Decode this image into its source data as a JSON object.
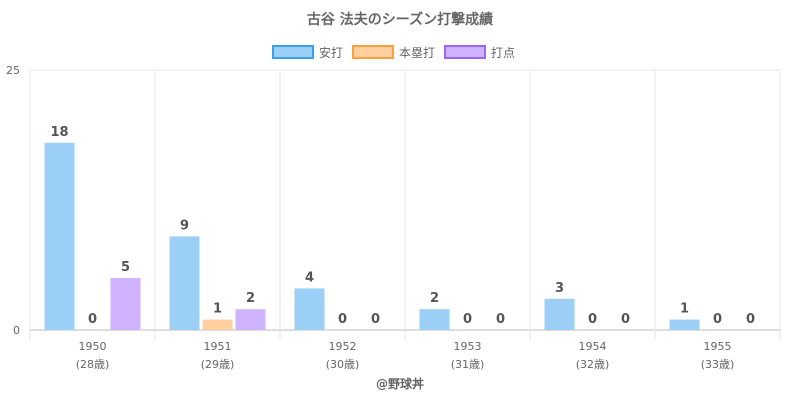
{
  "chart_data": {
    "type": "bar",
    "title": "古谷 法夫のシーズン打撃成績",
    "categories": [
      "1950",
      "1951",
      "1952",
      "1953",
      "1954",
      "1955"
    ],
    "category_sublabels": [
      "(28歳)",
      "(29歳)",
      "(30歳)",
      "(31歳)",
      "(32歳)",
      "(33歳)"
    ],
    "series": [
      {
        "name": "安打",
        "values": [
          18,
          9,
          4,
          2,
          3,
          1
        ],
        "fill": "#9ccff5",
        "stroke": "#36a2eb"
      },
      {
        "name": "本塁打",
        "values": [
          0,
          1,
          0,
          0,
          0,
          0
        ],
        "fill": "#ffcf9f",
        "stroke": "#ff9f40"
      },
      {
        "name": "打点",
        "values": [
          5,
          2,
          0,
          0,
          0,
          0
        ],
        "fill": "#d0b3ff",
        "stroke": "#9966ff"
      }
    ],
    "ylim": [
      0,
      25
    ],
    "y_ticks": [
      0,
      25
    ],
    "legend_position": "top",
    "grid": true,
    "data_labels": true
  },
  "footer": {
    "credit": "@野球丼"
  }
}
